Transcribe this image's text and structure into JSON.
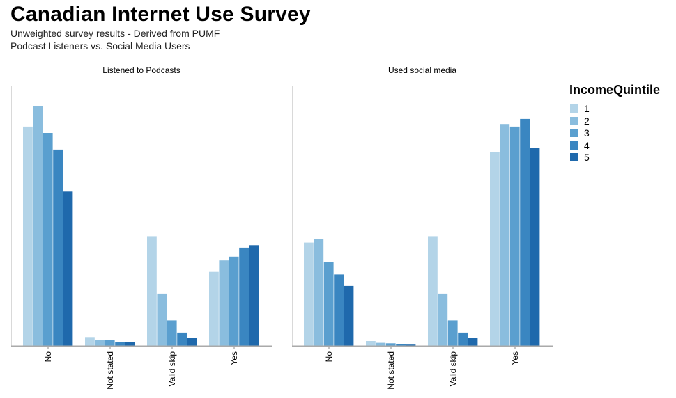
{
  "title": "Canadian Internet Use Survey",
  "subtitle_line1": "Unweighted survey results - Derived from PUMF",
  "subtitle_line2": "Podcast Listeners vs. Social Media Users",
  "chart_data": {
    "type": "bar",
    "categories": [
      "No",
      "Not stated",
      "Valid skip",
      "Yes"
    ],
    "legend": {
      "title": "IncomeQuintile",
      "entries": [
        "1",
        "2",
        "3",
        "4",
        "5"
      ],
      "colors": [
        "#b3d4e8",
        "#8abdde",
        "#5a9fcf",
        "#3a86c1",
        "#1f69ac"
      ]
    },
    "ylim": [
      0,
      100
    ],
    "panels": [
      {
        "title": "Listened to Podcasts",
        "series": [
          {
            "name": "1",
            "values": [
              86,
              3.2,
              43,
              29
            ]
          },
          {
            "name": "2",
            "values": [
              94,
              2.2,
              20.5,
              33.5
            ]
          },
          {
            "name": "3",
            "values": [
              83.5,
              2.2,
              10,
              35
            ]
          },
          {
            "name": "4",
            "values": [
              77,
              1.6,
              5.2,
              38.5
            ]
          },
          {
            "name": "5",
            "values": [
              60.5,
              1.6,
              3,
              39.5
            ]
          }
        ]
      },
      {
        "title": "Used social media",
        "series": [
          {
            "name": "1",
            "values": [
              40.5,
              1.9,
              43,
              76
            ]
          },
          {
            "name": "2",
            "values": [
              42,
              1.2,
              20.5,
              87
            ]
          },
          {
            "name": "3",
            "values": [
              33,
              1,
              10,
              86
            ]
          },
          {
            "name": "4",
            "values": [
              28,
              0.7,
              5.2,
              89
            ]
          },
          {
            "name": "5",
            "values": [
              23.5,
              0.5,
              3,
              77.5
            ]
          }
        ]
      }
    ]
  }
}
